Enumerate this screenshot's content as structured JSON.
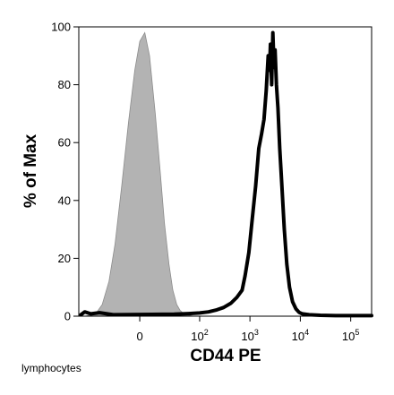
{
  "chart_data": {
    "type": "area",
    "xlabel": "CD44 PE",
    "ylabel": "% of Max",
    "caption": "lymphocytes",
    "x_scale": "biexponential",
    "ylim": [
      0,
      100
    ],
    "yticks": [
      0,
      20,
      40,
      60,
      80,
      100
    ],
    "xticks": [
      {
        "base": "0",
        "exp": ""
      },
      {
        "base": "10",
        "exp": "2"
      },
      {
        "base": "10",
        "exp": "3"
      },
      {
        "base": "10",
        "exp": "4"
      },
      {
        "base": "10",
        "exp": "5"
      }
    ],
    "grid": false,
    "series": [
      {
        "role": "control",
        "style": "filled",
        "fill": "#b3b3b3",
        "stroke": "#8c8c8c",
        "points": [
          [
            -80,
            0
          ],
          [
            -60,
            0.4
          ],
          [
            -45,
            1.5
          ],
          [
            -35,
            4
          ],
          [
            -25,
            12
          ],
          [
            -18,
            25
          ],
          [
            -12,
            45
          ],
          [
            -7,
            67
          ],
          [
            -3,
            85
          ],
          [
            0,
            95
          ],
          [
            3,
            98
          ],
          [
            6,
            90
          ],
          [
            10,
            70
          ],
          [
            14,
            50
          ],
          [
            18,
            32
          ],
          [
            23,
            18
          ],
          [
            28,
            9
          ],
          [
            34,
            4
          ],
          [
            40,
            2
          ],
          [
            48,
            0.8
          ],
          [
            60,
            0.3
          ],
          [
            75,
            0
          ]
        ]
      },
      {
        "role": "sample",
        "style": "outline",
        "stroke": "#000000",
        "points": [
          [
            -95,
            0.5
          ],
          [
            -80,
            1.5
          ],
          [
            -60,
            0.8
          ],
          [
            -40,
            1.2
          ],
          [
            -20,
            0.5
          ],
          [
            0,
            0.6
          ],
          [
            30,
            0.7
          ],
          [
            60,
            0.9
          ],
          [
            100,
            1.1
          ],
          [
            150,
            1.5
          ],
          [
            220,
            2.2
          ],
          [
            300,
            3
          ],
          [
            420,
            4.5
          ],
          [
            550,
            6.5
          ],
          [
            700,
            9
          ],
          [
            800,
            14
          ],
          [
            950,
            22
          ],
          [
            1100,
            33
          ],
          [
            1300,
            45
          ],
          [
            1500,
            58
          ],
          [
            1700,
            63
          ],
          [
            1900,
            68
          ],
          [
            2100,
            78
          ],
          [
            2300,
            90
          ],
          [
            2450,
            85
          ],
          [
            2550,
            94
          ],
          [
            2700,
            80
          ],
          [
            2850,
            98
          ],
          [
            3000,
            86
          ],
          [
            3150,
            92
          ],
          [
            3350,
            80
          ],
          [
            3600,
            72
          ],
          [
            3900,
            58
          ],
          [
            4300,
            45
          ],
          [
            4800,
            30
          ],
          [
            5400,
            18
          ],
          [
            6100,
            10
          ],
          [
            7000,
            5
          ],
          [
            8200,
            2.5
          ],
          [
            9500,
            1.3
          ],
          [
            11000,
            0.8
          ],
          [
            15000,
            0.5
          ],
          [
            25000,
            0.3
          ],
          [
            50000,
            0.2
          ],
          [
            120000,
            0.2
          ],
          [
            260000,
            0.2
          ]
        ]
      }
    ]
  }
}
